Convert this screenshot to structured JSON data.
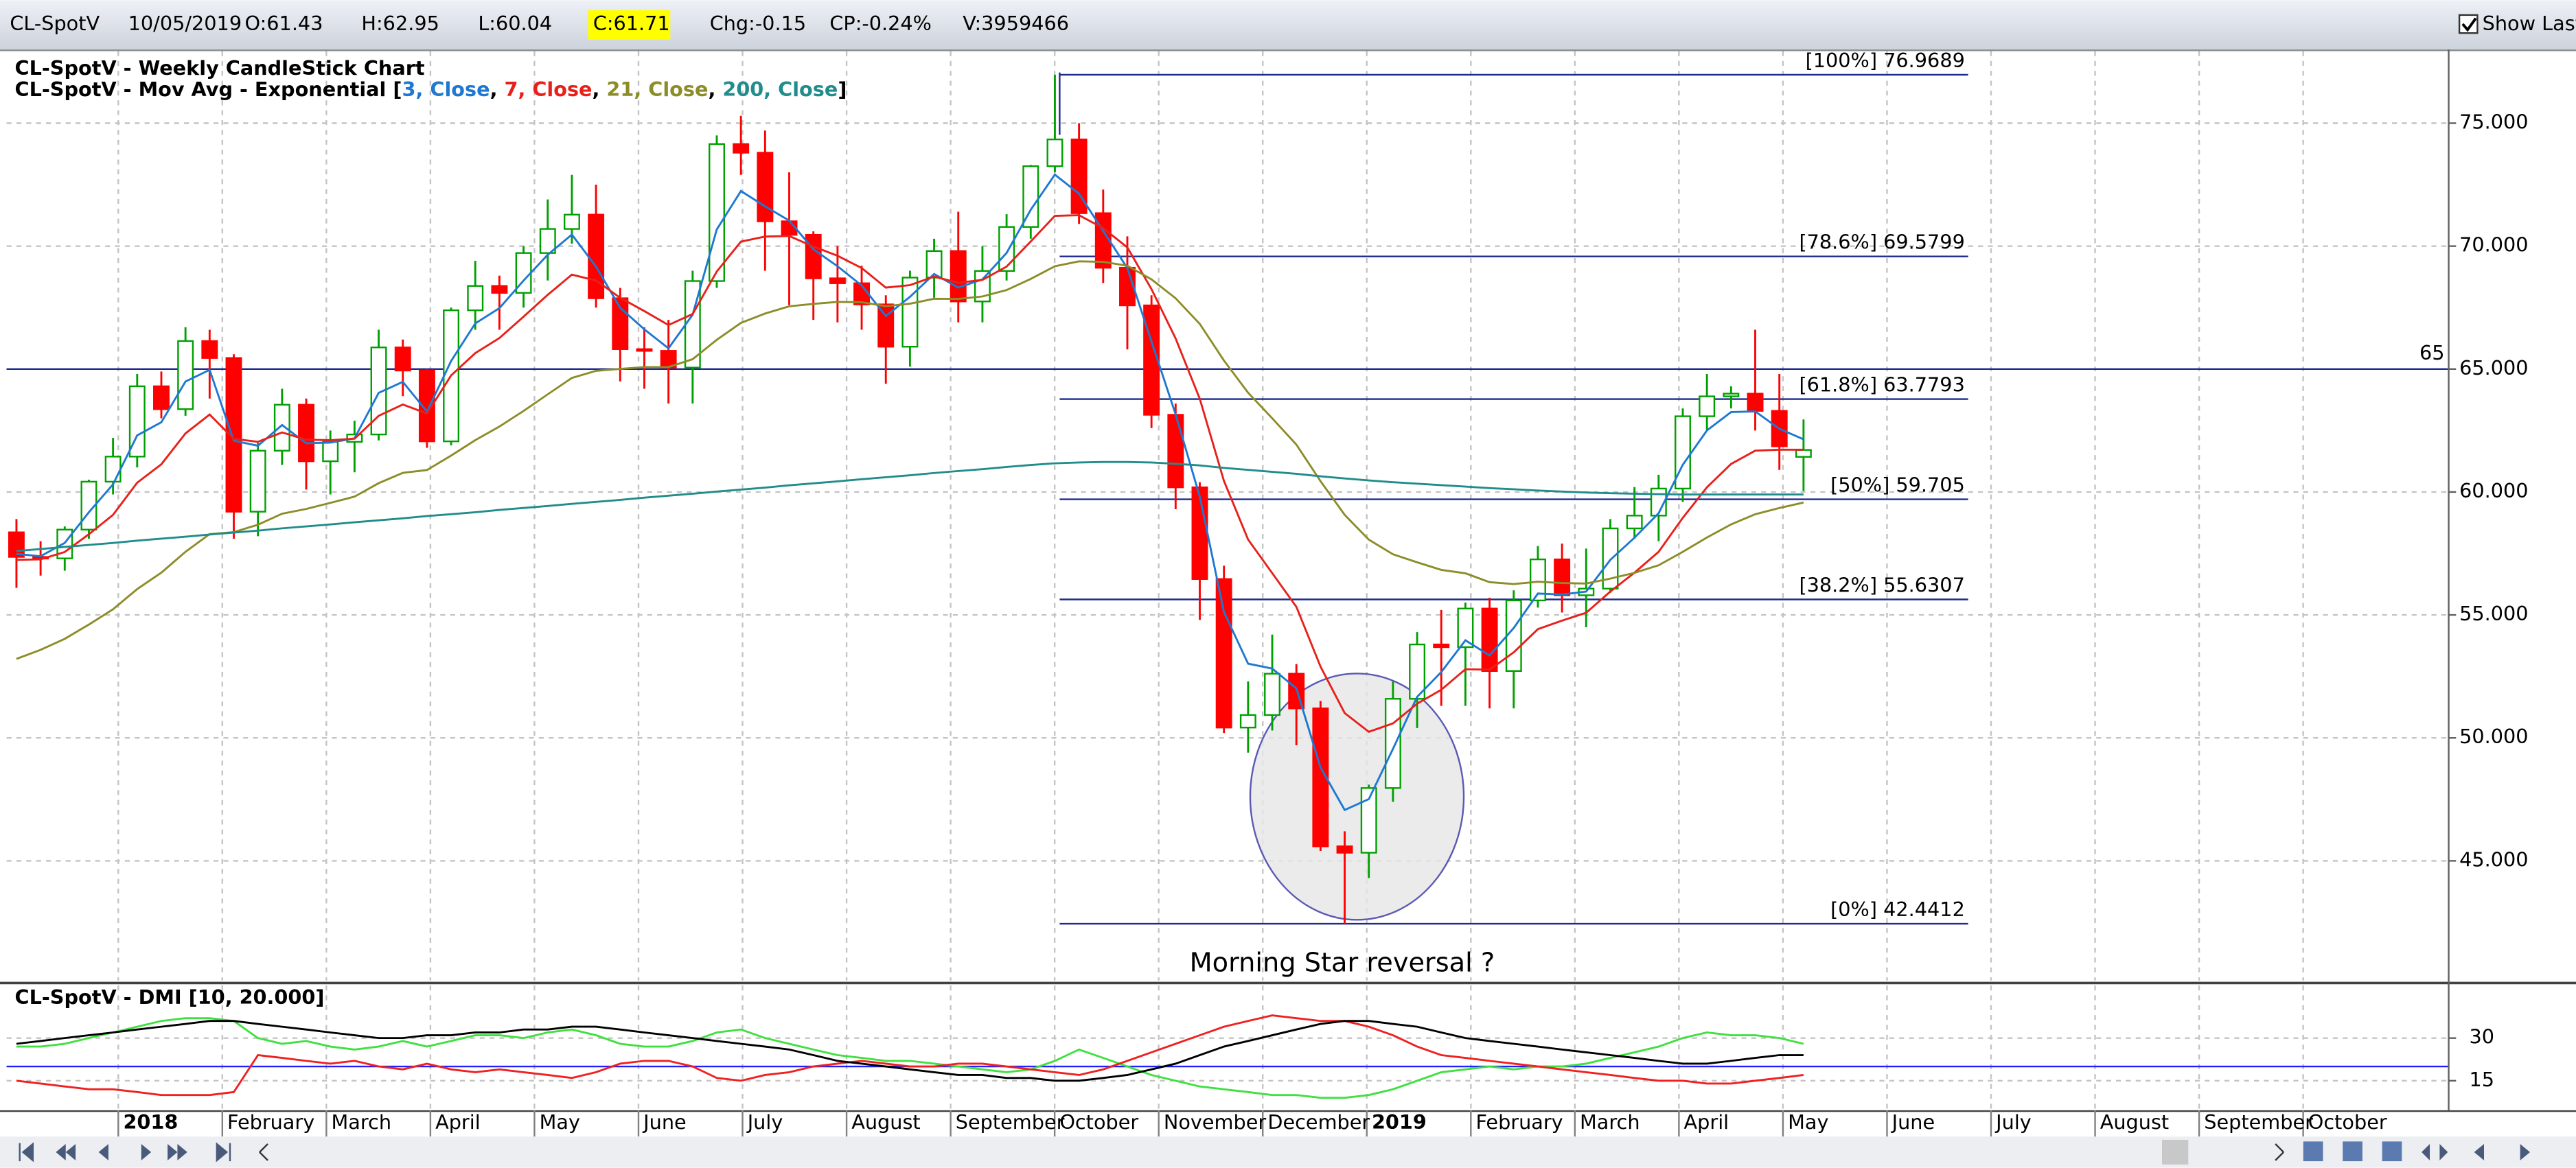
{
  "header": {
    "symbol": "CL-SpotV",
    "date": "10/05/2019",
    "open": "O:61.43",
    "high": "H:62.95",
    "low": "L:60.04",
    "close": "C:61.71",
    "change": "Chg:-0.15",
    "change_percent": "CP:-0.24%",
    "volume": "V:3959466",
    "show_last": "Show Last"
  },
  "chart_data": [
    {
      "type": "candlestick",
      "title": "CL-SpotV - Weekly CandleStick Chart",
      "legend": {
        "prefix": "CL-SpotV - Mov Avg - Exponential [",
        "separator": ", ",
        "suffix": "]"
      },
      "months": [
        "2018",
        "February",
        "March",
        "April",
        "May",
        "June",
        "July",
        "August",
        "September",
        "October",
        "November",
        "December",
        "2019",
        "February",
        "March",
        "April",
        "May",
        "June",
        "July",
        "August",
        "September",
        "October"
      ],
      "open": [
        58.36,
        57.36,
        57.3,
        58.47,
        60.42,
        61.44,
        64.3,
        63.37,
        66.14,
        65.45,
        59.2,
        61.68,
        63.55,
        61.25,
        62.04,
        62.34,
        65.88,
        64.94,
        62.06,
        67.39,
        68.38,
        68.1,
        69.72,
        70.7,
        71.28,
        67.88,
        65.81,
        65.74,
        65.06,
        68.58,
        74.15,
        73.8,
        71.01,
        70.46,
        68.69,
        68.49,
        67.63,
        65.91,
        68.72,
        69.8,
        67.75,
        68.99,
        70.78,
        73.25,
        74.34,
        71.34,
        69.12,
        67.59,
        63.14,
        60.19,
        56.46,
        50.42,
        50.93,
        52.61,
        51.2,
        45.59,
        45.33,
        47.96,
        51.59,
        53.8,
        53.69,
        55.26,
        52.72,
        55.59,
        57.26,
        55.8,
        56.07,
        58.52,
        59.04,
        60.14,
        63.08,
        63.89,
        64.0,
        63.3,
        61.43
      ],
      "high": [
        58.9,
        58.0,
        58.6,
        60.5,
        62.2,
        64.8,
        64.9,
        66.7,
        66.6,
        65.6,
        62.0,
        64.2,
        63.8,
        62.5,
        62.9,
        66.6,
        66.2,
        65.0,
        67.5,
        69.4,
        68.8,
        70.0,
        71.9,
        72.9,
        72.5,
        68.3,
        66.7,
        67.0,
        69.0,
        74.5,
        75.3,
        74.7,
        73.0,
        70.6,
        70.0,
        69.2,
        68.0,
        69.0,
        70.3,
        71.4,
        70.0,
        71.3,
        73.3,
        76.97,
        75.0,
        72.3,
        70.4,
        68.0,
        63.6,
        60.4,
        57.0,
        52.3,
        54.2,
        53.0,
        51.5,
        46.2,
        48.1,
        52.3,
        54.3,
        55.2,
        55.5,
        55.7,
        56.0,
        57.8,
        57.9,
        57.7,
        58.9,
        60.2,
        60.7,
        63.4,
        64.8,
        64.3,
        66.6,
        64.8,
        62.95
      ],
      "low": [
        56.1,
        56.6,
        56.8,
        58.1,
        59.9,
        61.0,
        63.0,
        63.1,
        63.8,
        58.1,
        58.2,
        61.1,
        60.1,
        59.9,
        60.8,
        62.1,
        63.9,
        61.8,
        61.9,
        66.6,
        66.6,
        67.5,
        68.6,
        70.1,
        67.5,
        64.5,
        64.2,
        63.6,
        63.6,
        68.3,
        72.9,
        69.0,
        67.6,
        67.0,
        66.9,
        66.6,
        64.4,
        65.1,
        67.9,
        66.9,
        66.9,
        68.6,
        70.3,
        73.0,
        70.9,
        68.5,
        65.8,
        62.6,
        59.3,
        54.8,
        50.2,
        49.4,
        50.3,
        49.7,
        45.4,
        42.44,
        44.3,
        47.4,
        50.4,
        51.3,
        51.3,
        51.2,
        51.2,
        55.3,
        55.1,
        54.5,
        55.9,
        58.1,
        58.0,
        59.6,
        62.5,
        63.4,
        62.5,
        60.9,
        60.04
      ],
      "close": [
        57.36,
        57.3,
        58.47,
        60.42,
        61.44,
        64.3,
        63.37,
        66.14,
        65.45,
        59.2,
        61.68,
        63.55,
        61.25,
        62.04,
        62.34,
        65.88,
        64.94,
        62.06,
        67.39,
        68.38,
        68.1,
        69.72,
        70.7,
        71.28,
        67.88,
        65.81,
        65.74,
        65.06,
        68.58,
        74.15,
        73.8,
        71.01,
        70.46,
        68.69,
        68.49,
        67.63,
        65.91,
        68.72,
        69.8,
        67.75,
        68.99,
        70.78,
        73.25,
        74.34,
        71.34,
        69.12,
        67.59,
        63.14,
        60.19,
        56.46,
        50.42,
        50.93,
        52.61,
        51.2,
        45.59,
        45.33,
        47.96,
        51.59,
        53.8,
        53.69,
        55.26,
        52.72,
        55.59,
        57.26,
        55.8,
        56.07,
        58.52,
        59.04,
        60.14,
        63.08,
        63.89,
        64.0,
        63.3,
        61.86,
        61.71
      ],
      "up_color": "#00a000",
      "down_color": "#ff0000",
      "series": [
        {
          "name": "3, Close",
          "color": "#1e78d2",
          "values": [
            57.48,
            57.39,
            57.93,
            59.18,
            60.31,
            62.3,
            62.84,
            64.49,
            64.97,
            62.09,
            61.88,
            62.72,
            61.98,
            62.01,
            62.18,
            64.03,
            64.48,
            63.27,
            65.33,
            66.86,
            67.48,
            68.6,
            69.65,
            70.47,
            69.17,
            67.49,
            66.62,
            65.84,
            67.21,
            70.68,
            72.24,
            71.62,
            71.04,
            69.87,
            69.18,
            68.4,
            67.16,
            67.94,
            68.87,
            68.31,
            68.65,
            69.72,
            71.48,
            72.91,
            72.13,
            70.62,
            69.11,
            66.12,
            63.16,
            59.81,
            55.12,
            53.02,
            52.82,
            52.01,
            48.8,
            47.07,
            47.51,
            49.55,
            51.67,
            52.68,
            53.97,
            53.35,
            54.47,
            55.87,
            55.83,
            55.95,
            57.24,
            58.14,
            59.14,
            61.11,
            62.5,
            63.25,
            63.28,
            62.57,
            62.14
          ]
        },
        {
          "name": "7, Close",
          "color": "#e8201a",
          "values": [
            57.24,
            57.26,
            57.56,
            58.28,
            59.07,
            60.38,
            61.13,
            62.38,
            63.15,
            62.16,
            62.04,
            62.42,
            62.13,
            62.11,
            62.17,
            63.1,
            63.56,
            63.19,
            64.74,
            65.65,
            66.26,
            67.13,
            68.02,
            68.84,
            68.6,
            67.9,
            67.36,
            66.79,
            67.24,
            68.97,
            70.18,
            70.39,
            70.41,
            69.98,
            69.61,
            69.11,
            68.31,
            68.41,
            68.76,
            68.51,
            68.63,
            69.17,
            70.19,
            71.23,
            71.26,
            70.73,
            69.95,
            68.25,
            66.24,
            63.79,
            60.45,
            58.07,
            56.7,
            55.33,
            52.9,
            51.01,
            50.25,
            50.59,
            51.39,
            51.96,
            52.79,
            52.77,
            53.48,
            54.42,
            54.77,
            55.09,
            55.95,
            56.72,
            57.57,
            58.95,
            60.19,
            61.14,
            61.68,
            61.72,
            61.72
          ]
        },
        {
          "name": "21, Close",
          "color": "#8c8c28",
          "values": [
            53.21,
            53.58,
            54.03,
            54.61,
            55.23,
            56.05,
            56.72,
            57.57,
            58.29,
            58.37,
            58.67,
            59.12,
            59.31,
            59.56,
            59.81,
            60.36,
            60.78,
            60.89,
            61.48,
            62.11,
            62.66,
            63.3,
            63.97,
            64.64,
            64.93,
            65.01,
            65.08,
            65.08,
            65.4,
            66.19,
            66.88,
            67.26,
            67.55,
            67.65,
            67.73,
            67.72,
            67.56,
            67.66,
            67.86,
            67.85,
            67.95,
            68.21,
            68.67,
            69.18,
            69.38,
            69.36,
            69.2,
            68.65,
            67.88,
            66.84,
            65.35,
            64.04,
            63.0,
            61.93,
            60.44,
            59.07,
            58.06,
            57.47,
            57.14,
            56.83,
            56.69,
            56.33,
            56.26,
            56.35,
            56.3,
            56.28,
            56.48,
            56.71,
            57.02,
            57.57,
            58.15,
            58.68,
            59.1,
            59.35,
            59.57
          ]
        },
        {
          "name": "200, Close",
          "color": "#208c8c",
          "values": [
            57.6,
            57.68,
            57.77,
            57.85,
            57.93,
            58.02,
            58.1,
            58.18,
            58.27,
            58.35,
            58.43,
            58.52,
            58.6,
            58.68,
            58.77,
            58.85,
            58.93,
            59.02,
            59.1,
            59.18,
            59.27,
            59.35,
            59.43,
            59.52,
            59.6,
            59.68,
            59.77,
            59.85,
            59.93,
            60.02,
            60.1,
            60.18,
            60.27,
            60.35,
            60.43,
            60.52,
            60.6,
            60.68,
            60.77,
            60.85,
            60.93,
            61.02,
            61.1,
            61.17,
            61.2,
            61.22,
            61.22,
            61.2,
            61.15,
            61.08,
            60.98,
            60.9,
            60.82,
            60.74,
            60.64,
            60.55,
            60.47,
            60.4,
            60.34,
            60.28,
            60.22,
            60.16,
            60.11,
            60.06,
            60.02,
            59.98,
            59.95,
            59.93,
            59.91,
            59.9,
            59.9,
            59.9,
            59.9,
            59.9,
            59.9
          ]
        }
      ],
      "ylim": [
        40.13,
        77.93
      ],
      "yticks": [
        {
          "value": 45,
          "label": "45.000"
        },
        {
          "value": 50,
          "label": "50.000"
        },
        {
          "value": 55,
          "label": "55.000"
        },
        {
          "value": 60,
          "label": "60.000"
        },
        {
          "value": 65,
          "label": "65.000"
        },
        {
          "value": 70,
          "label": "70.000"
        },
        {
          "value": 75,
          "label": "75.000"
        }
      ],
      "grid": true,
      "hline": 65,
      "hline_color": "#1c2a8c",
      "fib_color": "#1c2a8c",
      "fib_levels": [
        {
          "value": 76.9689,
          "label": "[100%] 76.9689"
        },
        {
          "value": 69.5799,
          "label": "[78.6%] 69.5799"
        },
        {
          "value": 63.7793,
          "label": "[61.8%] 63.7793"
        },
        {
          "value": 59.705,
          "label": "[50%] 59.705"
        },
        {
          "value": 55.6307,
          "label": "[38.2%] 55.6307"
        },
        {
          "value": 42.4412,
          "label": "[0%] 42.4412"
        }
      ],
      "annotation": "Morning Star reversal ?"
    },
    {
      "type": "line",
      "title": "CL-SpotV - DMI [10, 20.000]",
      "series": [
        {
          "color": "#40e040",
          "values": [
            27,
            27,
            28,
            30,
            32,
            34,
            36,
            37,
            37,
            36,
            30,
            28,
            29,
            27,
            26,
            27,
            29,
            27,
            29,
            31,
            31,
            30,
            32,
            33,
            31,
            28,
            27,
            27,
            29,
            32,
            33,
            30,
            28,
            26,
            24,
            23,
            22,
            22,
            21,
            20,
            19,
            18,
            19,
            22,
            26,
            23,
            20,
            17,
            15,
            13,
            12,
            11,
            10,
            10,
            9,
            9,
            10,
            12,
            15,
            18,
            19,
            20,
            19,
            20,
            20,
            21,
            23,
            25,
            27,
            30,
            32,
            31,
            31,
            30,
            28
          ]
        },
        {
          "color": "#f02020",
          "values": [
            15,
            14,
            13,
            12,
            12,
            11,
            10,
            10,
            10,
            11,
            24,
            23,
            22,
            21,
            22,
            20,
            19,
            21,
            19,
            18,
            19,
            18,
            17,
            16,
            18,
            21,
            22,
            22,
            20,
            16,
            15,
            17,
            18,
            20,
            21,
            22,
            21,
            20,
            20,
            21,
            21,
            20,
            19,
            18,
            17,
            19,
            22,
            25,
            28,
            31,
            34,
            36,
            38,
            37,
            36,
            36,
            34,
            31,
            27,
            24,
            23,
            22,
            21,
            20,
            19,
            18,
            17,
            16,
            15,
            15,
            14,
            14,
            15,
            16,
            17
          ]
        },
        {
          "color": "#000000",
          "values": [
            28,
            29,
            30,
            31,
            32,
            33,
            34,
            35,
            36,
            36,
            35,
            34,
            33,
            32,
            31,
            30,
            30,
            31,
            31,
            32,
            32,
            33,
            33,
            34,
            34,
            33,
            32,
            31,
            30,
            29,
            28,
            27,
            26,
            24,
            22,
            21,
            20,
            19,
            18,
            17,
            17,
            16,
            16,
            15,
            15,
            16,
            17,
            19,
            21,
            24,
            27,
            29,
            31,
            33,
            35,
            36,
            36,
            35,
            34,
            32,
            30,
            29,
            28,
            27,
            26,
            25,
            24,
            23,
            22,
            21,
            21,
            22,
            23,
            24,
            24
          ]
        }
      ],
      "ylim": [
        4.6,
        48.5
      ],
      "yticks": [
        15,
        30
      ],
      "grid": true,
      "hline": 20,
      "hline_color": "#2020ff"
    }
  ]
}
